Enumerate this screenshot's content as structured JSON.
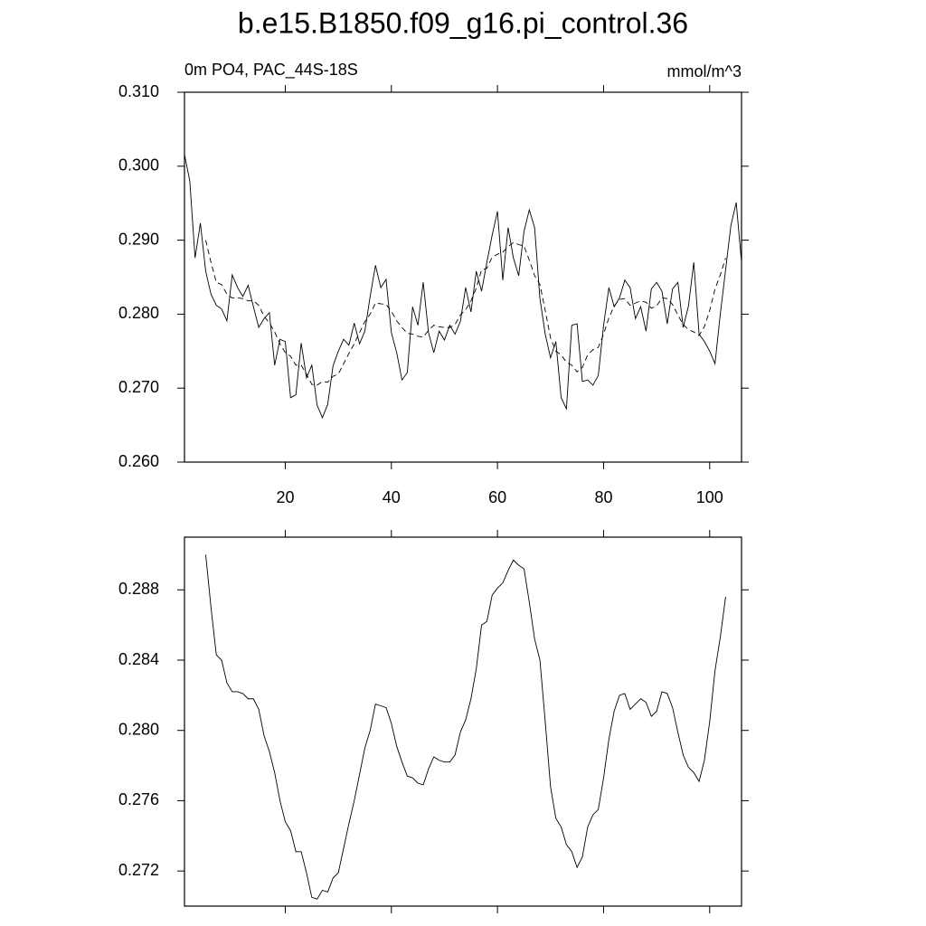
{
  "chart_data": [
    {
      "type": "line",
      "title": "b.e15.B1850.f09_g16.pi_control.36",
      "subtitle": "0m PO4, PAC_44S-18S",
      "units": "mmol/m^3",
      "x": [
        1,
        2,
        3,
        4,
        5,
        6,
        7,
        8,
        9,
        10,
        11,
        12,
        13,
        14,
        15,
        16,
        17,
        18,
        19,
        20,
        21,
        22,
        23,
        24,
        25,
        26,
        27,
        28,
        29,
        30,
        31,
        32,
        33,
        34,
        35,
        36,
        37,
        38,
        39,
        40,
        41,
        42,
        43,
        44,
        45,
        46,
        47,
        48,
        49,
        50,
        51,
        52,
        53,
        54,
        55,
        56,
        57,
        58,
        59,
        60,
        61,
        62,
        63,
        64,
        65,
        66,
        67,
        68,
        69,
        70,
        71,
        72,
        73,
        74,
        75,
        76,
        77,
        78,
        79,
        80,
        81,
        82,
        83,
        84,
        85,
        86,
        87,
        88,
        89,
        90,
        91,
        92,
        93,
        94,
        95,
        96,
        97,
        98,
        99,
        100,
        101,
        102,
        103,
        104,
        105,
        106
      ],
      "series": [
        {
          "color": "#000000",
          "style": "solid",
          "values": [
            0.3016,
            0.298,
            0.2876,
            0.2923,
            0.2858,
            0.2827,
            0.2812,
            0.2807,
            0.2791,
            0.2853,
            0.2836,
            0.2824,
            0.2839,
            0.281,
            0.2782,
            0.2794,
            0.2802,
            0.2731,
            0.2766,
            0.2763,
            0.2687,
            0.2691,
            0.2761,
            0.2714,
            0.2731,
            0.2677,
            0.266,
            0.2678,
            0.273,
            0.275,
            0.2766,
            0.2758,
            0.2788,
            0.276,
            0.2777,
            0.2824,
            0.2866,
            0.2836,
            0.2847,
            0.2775,
            0.2748,
            0.2711,
            0.2721,
            0.281,
            0.2785,
            0.2843,
            0.2775,
            0.2748,
            0.2777,
            0.2765,
            0.2785,
            0.2773,
            0.279,
            0.2836,
            0.2803,
            0.2858,
            0.2831,
            0.287,
            0.2907,
            0.2939,
            0.2846,
            0.2917,
            0.2876,
            0.2852,
            0.2912,
            0.2941,
            0.2917,
            0.2821,
            0.2773,
            0.2741,
            0.2763,
            0.2687,
            0.2672,
            0.2785,
            0.2787,
            0.2709,
            0.2711,
            0.2704,
            0.2717,
            0.2785,
            0.2836,
            0.281,
            0.2822,
            0.2846,
            0.2836,
            0.2794,
            0.281,
            0.2777,
            0.2834,
            0.2843,
            0.2831,
            0.2787,
            0.2834,
            0.2843,
            0.2782,
            0.2811,
            0.287,
            0.2773,
            0.2763,
            0.275,
            0.2733,
            0.28,
            0.286,
            0.292,
            0.2951,
            0.287
          ]
        },
        {
          "color": "#000000",
          "style": "dashed",
          "values": [
            null,
            null,
            null,
            null,
            0.29,
            0.287,
            0.2843,
            0.284,
            0.2827,
            0.2822,
            0.2822,
            0.2821,
            0.2818,
            0.2818,
            0.2812,
            0.2797,
            0.2788,
            0.2776,
            0.276,
            0.2748,
            0.2743,
            0.2731,
            0.2731,
            0.2719,
            0.2705,
            0.2704,
            0.2709,
            0.2708,
            0.2716,
            0.2719,
            0.2733,
            0.2747,
            0.276,
            0.2775,
            0.279,
            0.28,
            0.2815,
            0.2814,
            0.2813,
            0.2804,
            0.2791,
            0.2782,
            0.2774,
            0.2773,
            0.277,
            0.2769,
            0.2778,
            0.2785,
            0.2783,
            0.2782,
            0.2782,
            0.2786,
            0.2799,
            0.2806,
            0.2818,
            0.2835,
            0.286,
            0.2862,
            0.2877,
            0.2881,
            0.2884,
            0.2891,
            0.2897,
            0.2894,
            0.2892,
            0.2873,
            0.2852,
            0.284,
            0.2805,
            0.2768,
            0.275,
            0.2745,
            0.2735,
            0.2731,
            0.2722,
            0.2728,
            0.2745,
            0.2752,
            0.2755,
            0.2773,
            0.2795,
            0.2811,
            0.282,
            0.2821,
            0.2812,
            0.2815,
            0.2818,
            0.2816,
            0.2808,
            0.2811,
            0.2822,
            0.2821,
            0.2813,
            0.2799,
            0.2786,
            0.2779,
            0.2776,
            0.2771,
            0.2783,
            0.2805,
            0.2834,
            0.2853,
            0.2876,
            null,
            null,
            null
          ]
        }
      ],
      "xlim": [
        1,
        106
      ],
      "xticks": [
        20,
        40,
        60,
        80,
        100
      ],
      "ylim": [
        0.26,
        0.31
      ],
      "yticks": [
        {
          "value": 0.26,
          "label": "0.260"
        },
        {
          "value": 0.27,
          "label": "0.270"
        },
        {
          "value": 0.28,
          "label": "0.280"
        },
        {
          "value": 0.29,
          "label": "0.290"
        },
        {
          "value": 0.3,
          "label": "0.300"
        },
        {
          "value": 0.31,
          "label": "0.310"
        }
      ]
    },
    {
      "type": "line",
      "x": [
        1,
        2,
        3,
        4,
        5,
        6,
        7,
        8,
        9,
        10,
        11,
        12,
        13,
        14,
        15,
        16,
        17,
        18,
        19,
        20,
        21,
        22,
        23,
        24,
        25,
        26,
        27,
        28,
        29,
        30,
        31,
        32,
        33,
        34,
        35,
        36,
        37,
        38,
        39,
        40,
        41,
        42,
        43,
        44,
        45,
        46,
        47,
        48,
        49,
        50,
        51,
        52,
        53,
        54,
        55,
        56,
        57,
        58,
        59,
        60,
        61,
        62,
        63,
        64,
        65,
        66,
        67,
        68,
        69,
        70,
        71,
        72,
        73,
        74,
        75,
        76,
        77,
        78,
        79,
        80,
        81,
        82,
        83,
        84,
        85,
        86,
        87,
        88,
        89,
        90,
        91,
        92,
        93,
        94,
        95,
        96,
        97,
        98,
        99,
        100,
        101,
        102,
        103,
        104,
        105,
        106
      ],
      "series": [
        {
          "color": "#000000",
          "style": "solid",
          "values": [
            null,
            null,
            null,
            null,
            0.29,
            0.287,
            0.2843,
            0.284,
            0.2827,
            0.2822,
            0.2822,
            0.2821,
            0.2818,
            0.2818,
            0.2812,
            0.2797,
            0.2788,
            0.2776,
            0.276,
            0.2748,
            0.2743,
            0.2731,
            0.2731,
            0.2719,
            0.2705,
            0.2704,
            0.2709,
            0.2708,
            0.2716,
            0.2719,
            0.2733,
            0.2747,
            0.276,
            0.2775,
            0.279,
            0.28,
            0.2815,
            0.2814,
            0.2813,
            0.2804,
            0.2791,
            0.2782,
            0.2774,
            0.2773,
            0.277,
            0.2769,
            0.2778,
            0.2785,
            0.2783,
            0.2782,
            0.2782,
            0.2786,
            0.2799,
            0.2806,
            0.2818,
            0.2835,
            0.286,
            0.2862,
            0.2877,
            0.2881,
            0.2884,
            0.2891,
            0.2897,
            0.2894,
            0.2892,
            0.2873,
            0.2852,
            0.284,
            0.2805,
            0.2768,
            0.275,
            0.2745,
            0.2735,
            0.2731,
            0.2722,
            0.2728,
            0.2745,
            0.2752,
            0.2755,
            0.2773,
            0.2795,
            0.2811,
            0.282,
            0.2821,
            0.2812,
            0.2815,
            0.2818,
            0.2816,
            0.2808,
            0.2811,
            0.2822,
            0.2821,
            0.2813,
            0.2799,
            0.2786,
            0.2779,
            0.2776,
            0.2771,
            0.2783,
            0.2805,
            0.2834,
            0.2853,
            0.2876,
            null,
            null,
            null
          ]
        }
      ],
      "xlim": [
        1,
        106
      ],
      "xticks": [
        20,
        40,
        60,
        80,
        100
      ],
      "ylim": [
        0.27,
        0.291
      ],
      "yticks": [
        0.272,
        0.276,
        {
          "value": 0.28,
          "label": "0.280"
        },
        0.284,
        0.288
      ]
    }
  ]
}
